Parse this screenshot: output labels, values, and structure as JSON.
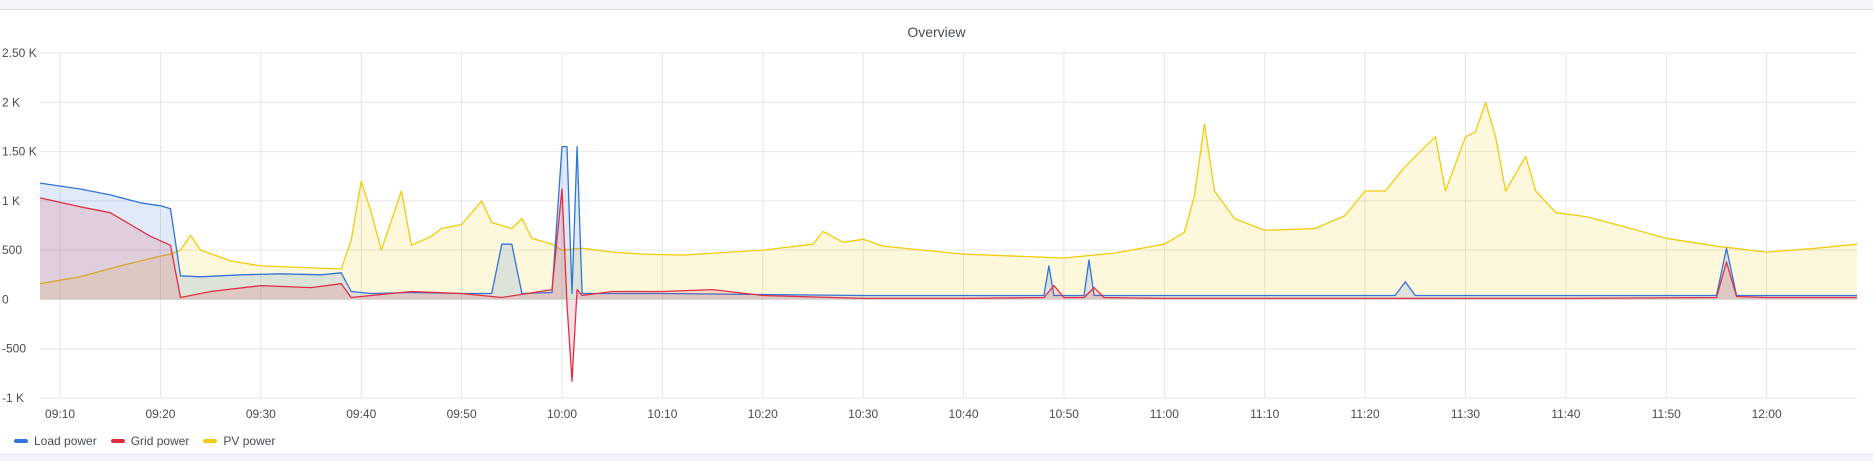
{
  "panel": {
    "title": "Overview"
  },
  "chart_data": {
    "type": "line",
    "title": "Overview",
    "xlabel": "",
    "ylabel": "",
    "ylim": [
      -1000,
      2500
    ],
    "yticks": [
      {
        "value": 2500,
        "label": "2.50 K"
      },
      {
        "value": 2000,
        "label": "2 K"
      },
      {
        "value": 1500,
        "label": "1.50 K"
      },
      {
        "value": 1000,
        "label": "1 K"
      },
      {
        "value": 500,
        "label": "500"
      },
      {
        "value": 0,
        "label": "0"
      },
      {
        "value": -500,
        "label": "-500"
      },
      {
        "value": -1000,
        "label": "-1 K"
      }
    ],
    "xlim": [
      "09:08",
      "12:09"
    ],
    "xticks": [
      "09:10",
      "09:20",
      "09:30",
      "09:40",
      "09:50",
      "10:00",
      "10:10",
      "10:20",
      "10:30",
      "10:40",
      "10:50",
      "11:00",
      "11:10",
      "11:20",
      "11:30",
      "11:40",
      "11:50",
      "12:00"
    ],
    "grid": true,
    "legend_position": "bottom-left",
    "series": [
      {
        "name": "Load power",
        "color": "#3274d9",
        "fill": "rgba(50,116,217,0.15)",
        "points": [
          [
            "09:08",
            1180
          ],
          [
            "09:12",
            1120
          ],
          [
            "09:15",
            1060
          ],
          [
            "09:18",
            980
          ],
          [
            "09:20",
            950
          ],
          [
            "09:21",
            920
          ],
          [
            "09:22",
            240
          ],
          [
            "09:24",
            230
          ],
          [
            "09:28",
            250
          ],
          [
            "09:32",
            260
          ],
          [
            "09:36",
            250
          ],
          [
            "09:38",
            270
          ],
          [
            "09:39",
            80
          ],
          [
            "09:41",
            60
          ],
          [
            "09:45",
            70
          ],
          [
            "09:50",
            60
          ],
          [
            "09:53",
            60
          ],
          [
            "09:54",
            560
          ],
          [
            "09:55",
            560
          ],
          [
            "09:56",
            60
          ],
          [
            "09:59",
            70
          ],
          [
            "10:00",
            1550
          ],
          [
            "10:00.5",
            1550
          ],
          [
            "10:01",
            60
          ],
          [
            "10:01.5",
            1550
          ],
          [
            "10:02",
            60
          ],
          [
            "10:05",
            60
          ],
          [
            "10:10",
            60
          ],
          [
            "10:20",
            50
          ],
          [
            "10:30",
            40
          ],
          [
            "10:40",
            40
          ],
          [
            "10:48",
            40
          ],
          [
            "10:48.5",
            340
          ],
          [
            "10:49",
            40
          ],
          [
            "10:52",
            40
          ],
          [
            "10:52.5",
            400
          ],
          [
            "10:53",
            40
          ],
          [
            "11:00",
            40
          ],
          [
            "11:10",
            40
          ],
          [
            "11:23",
            40
          ],
          [
            "11:24",
            180
          ],
          [
            "11:25",
            40
          ],
          [
            "11:30",
            40
          ],
          [
            "11:40",
            40
          ],
          [
            "11:55",
            40
          ],
          [
            "11:56",
            520
          ],
          [
            "11:57",
            40
          ],
          [
            "12:00",
            40
          ],
          [
            "12:09",
            40
          ]
        ]
      },
      {
        "name": "Grid power",
        "color": "#e02f44",
        "fill": "rgba(224,47,68,0.15)",
        "points": [
          [
            "09:08",
            1030
          ],
          [
            "09:12",
            940
          ],
          [
            "09:15",
            880
          ],
          [
            "09:17",
            760
          ],
          [
            "09:19",
            640
          ],
          [
            "09:21",
            550
          ],
          [
            "09:22",
            20
          ],
          [
            "09:25",
            80
          ],
          [
            "09:30",
            140
          ],
          [
            "09:35",
            120
          ],
          [
            "09:38",
            160
          ],
          [
            "09:39",
            20
          ],
          [
            "09:45",
            80
          ],
          [
            "09:50",
            60
          ],
          [
            "09:54",
            20
          ],
          [
            "09:59",
            100
          ],
          [
            "10:00",
            1120
          ],
          [
            "10:00.5",
            -50
          ],
          [
            "10:01",
            -830
          ],
          [
            "10:01.5",
            100
          ],
          [
            "10:02",
            40
          ],
          [
            "10:05",
            80
          ],
          [
            "10:10",
            80
          ],
          [
            "10:15",
            100
          ],
          [
            "10:20",
            40
          ],
          [
            "10:30",
            10
          ],
          [
            "10:40",
            10
          ],
          [
            "10:48",
            20
          ],
          [
            "10:49",
            140
          ],
          [
            "10:50",
            20
          ],
          [
            "10:52",
            20
          ],
          [
            "10:53",
            120
          ],
          [
            "10:54",
            20
          ],
          [
            "11:00",
            10
          ],
          [
            "11:10",
            10
          ],
          [
            "11:24",
            10
          ],
          [
            "11:30",
            10
          ],
          [
            "11:40",
            10
          ],
          [
            "11:55",
            20
          ],
          [
            "11:56",
            380
          ],
          [
            "11:57",
            30
          ],
          [
            "12:00",
            20
          ],
          [
            "12:09",
            20
          ]
        ]
      },
      {
        "name": "PV power",
        "color": "#f2cc0c",
        "fill": "rgba(242,204,12,0.15)",
        "points": [
          [
            "09:08",
            160
          ],
          [
            "09:12",
            230
          ],
          [
            "09:16",
            340
          ],
          [
            "09:20",
            440
          ],
          [
            "09:21",
            460
          ],
          [
            "09:22",
            500
          ],
          [
            "09:23",
            650
          ],
          [
            "09:24",
            500
          ],
          [
            "09:27",
            390
          ],
          [
            "09:30",
            340
          ],
          [
            "09:35",
            320
          ],
          [
            "09:38",
            310
          ],
          [
            "09:39",
            600
          ],
          [
            "09:40",
            1200
          ],
          [
            "09:41",
            880
          ],
          [
            "09:42",
            500
          ],
          [
            "09:43",
            800
          ],
          [
            "09:44",
            1100
          ],
          [
            "09:45",
            550
          ],
          [
            "09:47",
            640
          ],
          [
            "09:48",
            720
          ],
          [
            "09:50",
            760
          ],
          [
            "09:52",
            1000
          ],
          [
            "09:53",
            780
          ],
          [
            "09:55",
            720
          ],
          [
            "09:56",
            820
          ],
          [
            "09:57",
            620
          ],
          [
            "09:59",
            560
          ],
          [
            "10:00",
            500
          ],
          [
            "10:02",
            520
          ],
          [
            "10:05",
            480
          ],
          [
            "10:08",
            460
          ],
          [
            "10:12",
            450
          ],
          [
            "10:20",
            500
          ],
          [
            "10:25",
            560
          ],
          [
            "10:26",
            690
          ],
          [
            "10:28",
            580
          ],
          [
            "10:30",
            610
          ],
          [
            "10:32",
            540
          ],
          [
            "10:40",
            460
          ],
          [
            "10:50",
            420
          ],
          [
            "10:55",
            470
          ],
          [
            "11:00",
            560
          ],
          [
            "11:02",
            680
          ],
          [
            "11:03",
            1050
          ],
          [
            "11:04",
            1780
          ],
          [
            "11:05",
            1100
          ],
          [
            "11:07",
            820
          ],
          [
            "11:10",
            700
          ],
          [
            "11:15",
            720
          ],
          [
            "11:18",
            850
          ],
          [
            "11:20",
            1100
          ],
          [
            "11:22",
            1100
          ],
          [
            "11:24",
            1350
          ],
          [
            "11:26",
            1550
          ],
          [
            "11:27",
            1650
          ],
          [
            "11:28",
            1100
          ],
          [
            "11:30",
            1650
          ],
          [
            "11:31",
            1700
          ],
          [
            "11:32",
            2000
          ],
          [
            "11:33",
            1650
          ],
          [
            "11:34",
            1100
          ],
          [
            "11:36",
            1450
          ],
          [
            "11:37",
            1100
          ],
          [
            "11:39",
            880
          ],
          [
            "11:42",
            840
          ],
          [
            "11:45",
            760
          ],
          [
            "11:50",
            620
          ],
          [
            "11:55",
            540
          ],
          [
            "12:00",
            480
          ],
          [
            "12:05",
            520
          ],
          [
            "12:09",
            560
          ]
        ]
      }
    ]
  }
}
